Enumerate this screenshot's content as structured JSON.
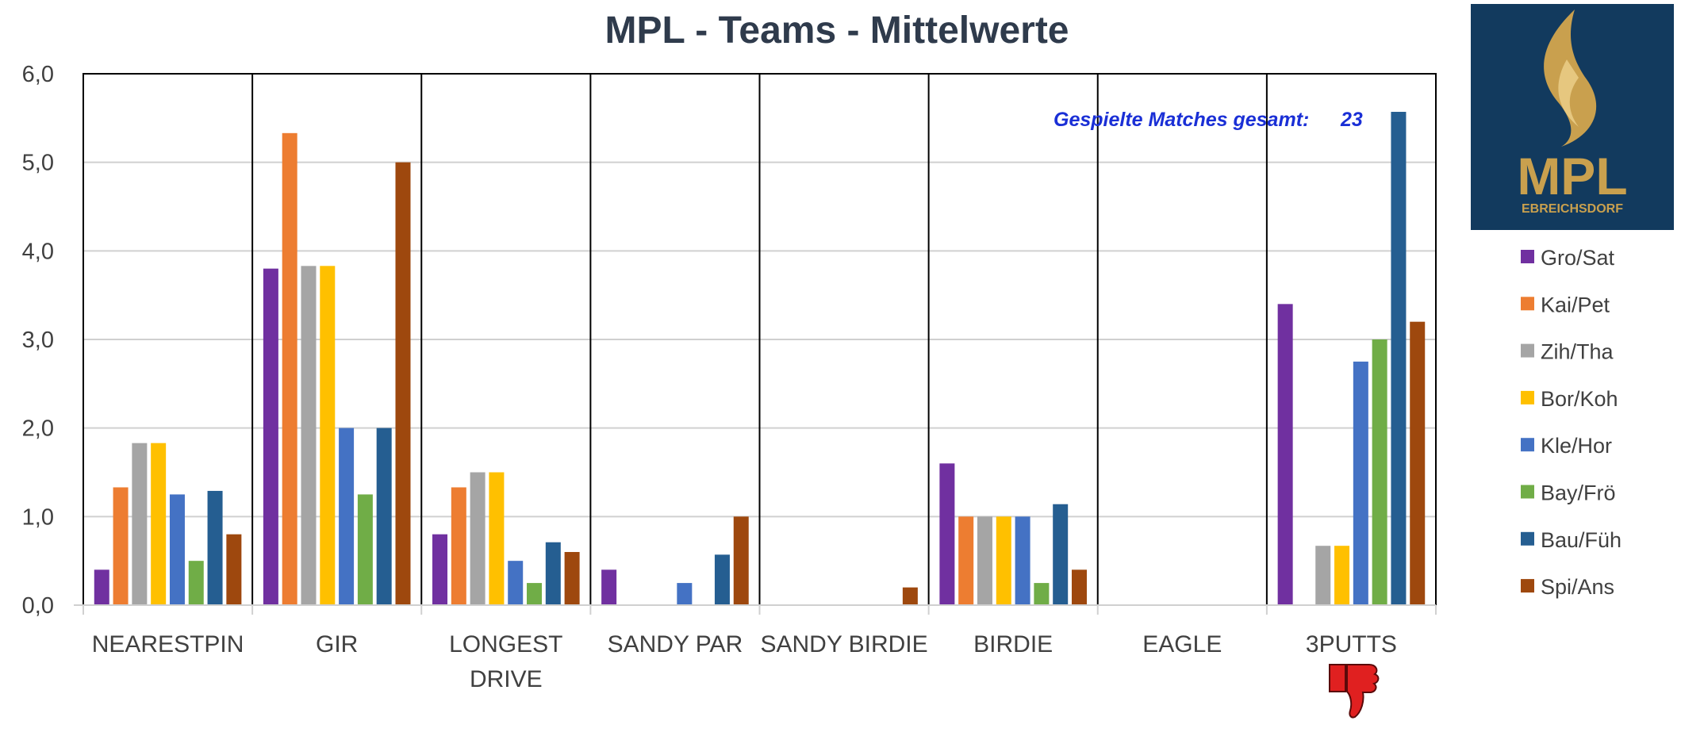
{
  "chart_data": {
    "type": "bar",
    "title": "MPL - Teams - Mittelwerte",
    "xlabel": "",
    "ylabel": "",
    "ylim": [
      0,
      6
    ],
    "yticks": [
      "0,0",
      "1,0",
      "2,0",
      "3,0",
      "4,0",
      "5,0",
      "6,0"
    ],
    "grid": true,
    "legend_position": "right",
    "categories": [
      [
        "NEARESTPIN"
      ],
      [
        "GIR"
      ],
      [
        "LONGEST",
        "DRIVE"
      ],
      [
        "SANDY PAR"
      ],
      [
        "SANDY BIRDIE"
      ],
      [
        "BIRDIE"
      ],
      [
        "EAGLE"
      ],
      [
        "3PUTTS"
      ]
    ],
    "series": [
      {
        "name": "Gro/Sat",
        "color": "#7030a0",
        "values": [
          0.4,
          3.8,
          0.8,
          0.4,
          0,
          1.6,
          0,
          3.4
        ]
      },
      {
        "name": "Kai/Pet",
        "color": "#ed7d31",
        "values": [
          1.33,
          5.33,
          1.33,
          0,
          0,
          1.0,
          0,
          0
        ]
      },
      {
        "name": "Zih/Tha",
        "color": "#a5a5a5",
        "values": [
          1.83,
          3.83,
          1.5,
          0,
          0,
          1.0,
          0,
          0.67
        ]
      },
      {
        "name": "Bor/Koh",
        "color": "#ffc000",
        "values": [
          1.83,
          3.83,
          1.5,
          0,
          0,
          1.0,
          0,
          0.67
        ]
      },
      {
        "name": "Kle/Hor",
        "color": "#4472c4",
        "values": [
          1.25,
          2.0,
          0.5,
          0.25,
          0,
          1.0,
          0,
          2.75
        ]
      },
      {
        "name": "Bay/Frö",
        "color": "#70ad47",
        "values": [
          0.5,
          1.25,
          0.25,
          0,
          0,
          0.25,
          0,
          3.0
        ]
      },
      {
        "name": "Bau/Füh",
        "color": "#255e91",
        "values": [
          1.29,
          2.0,
          0.71,
          0.57,
          0,
          1.14,
          0,
          5.57
        ]
      },
      {
        "name": "Spi/Ans",
        "color": "#9e480e",
        "values": [
          0.8,
          5.0,
          0.6,
          1.0,
          0.2,
          0.4,
          0,
          3.2
        ]
      }
    ],
    "annotation": {
      "label": "Gespielte Matches gesamt:",
      "value": "23"
    }
  },
  "logo": {
    "brand": "MPL",
    "subtitle": "EBREICHSDORF",
    "bg_color": "#123a5e",
    "accent": "#c9a04e"
  },
  "icons": {
    "thumbs_down": "thumbs-down-icon",
    "flame": "flame-icon"
  }
}
